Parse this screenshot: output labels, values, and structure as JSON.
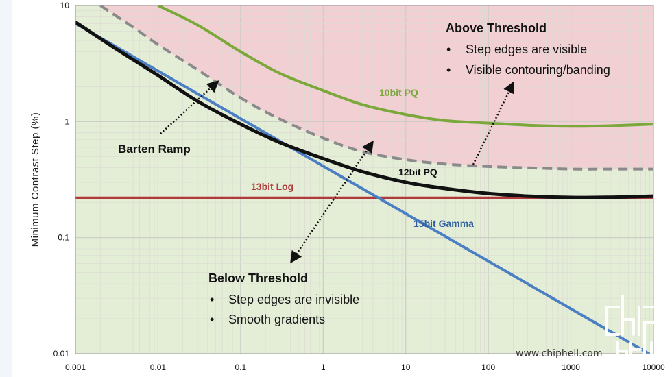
{
  "chart_data": {
    "type": "line",
    "ylabel": "Minimum Contrast Step (%)",
    "xlabel": "",
    "x_scale": "log",
    "y_scale": "log",
    "xlim": [
      0.001,
      10000
    ],
    "ylim": [
      0.01,
      10
    ],
    "x_ticks": [
      "0.001",
      "0.01",
      "0.1",
      "1",
      "10",
      "100",
      "1000",
      "10000"
    ],
    "y_ticks": [
      "0.01",
      "0.1",
      "1",
      "10"
    ],
    "grid": true,
    "regions": [
      {
        "name": "Above Threshold",
        "color": "#f1cfd2"
      },
      {
        "name": "Below Threshold",
        "color": "#e4edd6"
      }
    ],
    "series": [
      {
        "name": "10bit PQ",
        "color": "#7aa83a",
        "style": "solid",
        "x": [
          0.01,
          0.03,
          0.1,
          0.3,
          1,
          3,
          10,
          30,
          100,
          300,
          1000,
          3000,
          10000
        ],
        "y": [
          10,
          6.8,
          4.0,
          2.6,
          1.85,
          1.4,
          1.15,
          1.02,
          0.97,
          0.93,
          0.91,
          0.92,
          0.95
        ]
      },
      {
        "name": "Barten Ramp",
        "color": "#8a8a8a",
        "style": "dashed",
        "x": [
          0.002,
          0.005,
          0.01,
          0.03,
          0.1,
          0.3,
          1,
          3,
          10,
          30,
          100,
          300,
          1000,
          3000,
          10000
        ],
        "y": [
          10,
          6.5,
          4.6,
          2.8,
          1.6,
          1.05,
          0.72,
          0.55,
          0.47,
          0.43,
          0.41,
          0.4,
          0.39,
          0.39,
          0.39
        ]
      },
      {
        "name": "12bit PQ",
        "color": "#111111",
        "style": "solid",
        "x": [
          0.001,
          0.003,
          0.01,
          0.03,
          0.1,
          0.3,
          1,
          3,
          10,
          30,
          100,
          300,
          1000,
          3000,
          10000
        ],
        "y": [
          7.2,
          4.3,
          2.5,
          1.5,
          0.95,
          0.66,
          0.48,
          0.37,
          0.3,
          0.265,
          0.24,
          0.228,
          0.222,
          0.223,
          0.228
        ]
      },
      {
        "name": "13bit Log",
        "color": "#b03a3a",
        "style": "solid",
        "x": [
          0.001,
          10000
        ],
        "y": [
          0.22,
          0.22
        ]
      },
      {
        "name": "15bit Gamma",
        "color": "#4a7fc4",
        "style": "solid",
        "x": [
          0.001,
          10000
        ],
        "y": [
          7.0,
          0.0095
        ]
      }
    ],
    "annotations": [
      {
        "title": "Above Threshold",
        "items": [
          "Step edges are visible",
          "Visible contouring/banding"
        ]
      },
      {
        "title": "Below Threshold",
        "items": [
          "Step edges are invisible",
          "Smooth gradients"
        ]
      },
      {
        "text": "Barten Ramp"
      }
    ]
  },
  "watermark": {
    "url": "www.chiphell.com"
  }
}
